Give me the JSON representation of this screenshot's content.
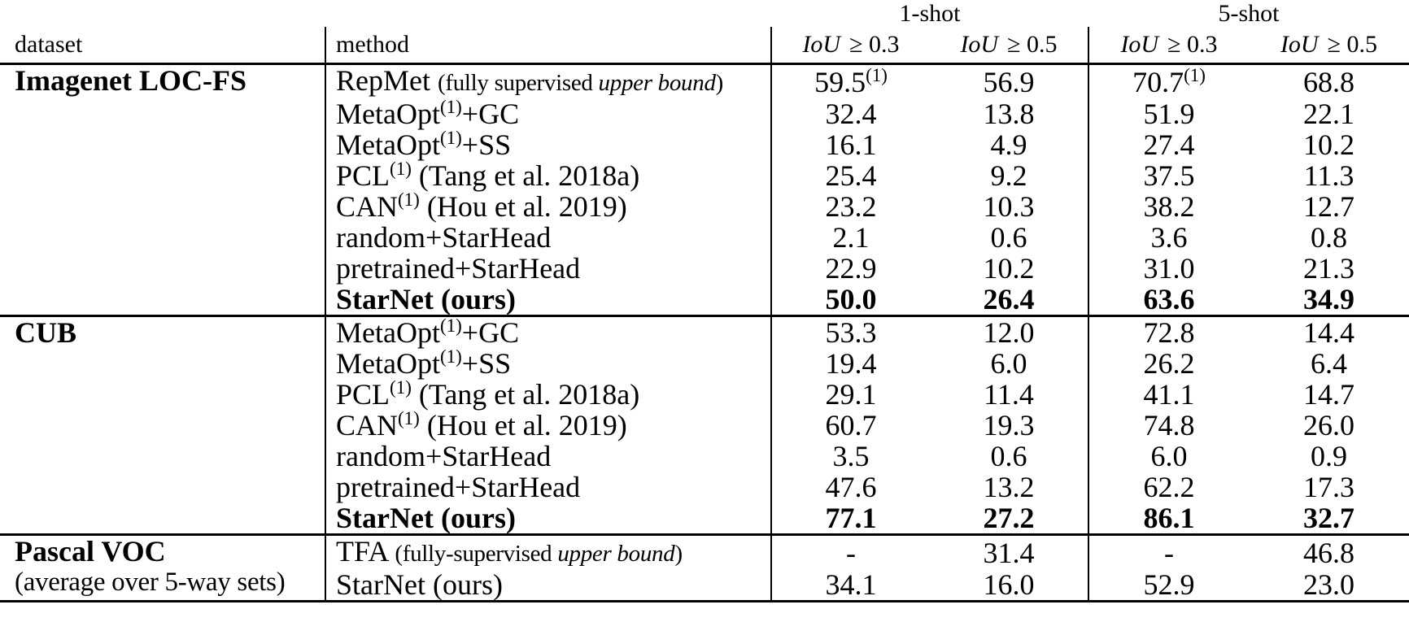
{
  "header": {
    "dataset": "dataset",
    "method": "method",
    "shot1": "1-shot",
    "shot5": "5-shot",
    "iou_label": "IoU",
    "iou_03": "≥ 0.3",
    "iou_05": "≥ 0.5"
  },
  "groups": [
    {
      "dataset": [
        {
          "t": "Imagenet LOC-FS",
          "bold": true
        }
      ],
      "rows": [
        {
          "method": [
            {
              "t": "RepMet "
            },
            {
              "t": "(fully supervised ",
              "small": true
            },
            {
              "t": "upper bound",
              "small": true,
              "italic": true
            },
            {
              "t": ")",
              "small": true
            }
          ],
          "values": [
            {
              "v": "59.5",
              "sup": "(1)"
            },
            "56.9",
            {
              "v": "70.7",
              "sup": "(1)"
            },
            "68.8"
          ]
        },
        {
          "method": [
            {
              "t": "MetaOpt"
            },
            {
              "t": "(1)",
              "sup": true
            },
            {
              "t": "+GC"
            }
          ],
          "values": [
            "32.4",
            "13.8",
            "51.9",
            "22.1"
          ]
        },
        {
          "method": [
            {
              "t": "MetaOpt"
            },
            {
              "t": "(1)",
              "sup": true
            },
            {
              "t": "+SS"
            }
          ],
          "values": [
            "16.1",
            "4.9",
            "27.4",
            "10.2"
          ]
        },
        {
          "method": [
            {
              "t": "PCL"
            },
            {
              "t": "(1)",
              "sup": true
            },
            {
              "t": " (Tang et al. 2018a)"
            }
          ],
          "values": [
            "25.4",
            "9.2",
            "37.5",
            "11.3"
          ]
        },
        {
          "method": [
            {
              "t": "CAN"
            },
            {
              "t": "(1)",
              "sup": true
            },
            {
              "t": " (Hou et al. 2019)"
            }
          ],
          "values": [
            "23.2",
            "10.3",
            "38.2",
            "12.7"
          ]
        },
        {
          "method": [
            {
              "t": "random+StarHead"
            }
          ],
          "values": [
            "2.1",
            "0.6",
            "3.6",
            "0.8"
          ]
        },
        {
          "method": [
            {
              "t": "pretrained+StarHead"
            }
          ],
          "values": [
            "22.9",
            "10.2",
            "31.0",
            "21.3"
          ]
        },
        {
          "method": [
            {
              "t": "StarNet (ours)",
              "bold": true
            }
          ],
          "bold": true,
          "values": [
            "50.0",
            "26.4",
            "63.6",
            "34.9"
          ]
        }
      ]
    },
    {
      "dataset": [
        {
          "t": "CUB",
          "bold": true
        }
      ],
      "rows": [
        {
          "method": [
            {
              "t": "MetaOpt"
            },
            {
              "t": "(1)",
              "sup": true
            },
            {
              "t": "+GC"
            }
          ],
          "values": [
            "53.3",
            "12.0",
            "72.8",
            "14.4"
          ]
        },
        {
          "method": [
            {
              "t": "MetaOpt"
            },
            {
              "t": "(1)",
              "sup": true
            },
            {
              "t": "+SS"
            }
          ],
          "values": [
            "19.4",
            "6.0",
            "26.2",
            "6.4"
          ]
        },
        {
          "method": [
            {
              "t": "PCL"
            },
            {
              "t": "(1)",
              "sup": true
            },
            {
              "t": " (Tang et al. 2018a)"
            }
          ],
          "values": [
            "29.1",
            "11.4",
            "41.1",
            "14.7"
          ]
        },
        {
          "method": [
            {
              "t": "CAN"
            },
            {
              "t": "(1)",
              "sup": true
            },
            {
              "t": " (Hou et al. 2019)"
            }
          ],
          "values": [
            "60.7",
            "19.3",
            "74.8",
            "26.0"
          ]
        },
        {
          "method": [
            {
              "t": "random+StarHead"
            }
          ],
          "values": [
            "3.5",
            "0.6",
            "6.0",
            "0.9"
          ]
        },
        {
          "method": [
            {
              "t": "pretrained+StarHead"
            }
          ],
          "values": [
            "47.6",
            "13.2",
            "62.2",
            "17.3"
          ]
        },
        {
          "method": [
            {
              "t": "StarNet (ours)",
              "bold": true
            }
          ],
          "bold": true,
          "values": [
            "77.1",
            "27.2",
            "86.1",
            "32.7"
          ]
        }
      ]
    },
    {
      "dataset": [
        {
          "t": "Pascal VOC",
          "bold": true
        }
      ],
      "dataset_line2": [
        {
          "t": "(average over 5-way sets)"
        }
      ],
      "rows": [
        {
          "method": [
            {
              "t": "TFA "
            },
            {
              "t": "(fully-supervised ",
              "small": true
            },
            {
              "t": "upper bound",
              "small": true,
              "italic": true
            },
            {
              "t": ")",
              "small": true
            }
          ],
          "values": [
            "-",
            "31.4",
            "-",
            "46.8"
          ]
        },
        {
          "method": [
            {
              "t": "StarNet (ours)"
            }
          ],
          "values": [
            "34.1",
            "16.0",
            "52.9",
            "23.0"
          ]
        }
      ]
    }
  ]
}
